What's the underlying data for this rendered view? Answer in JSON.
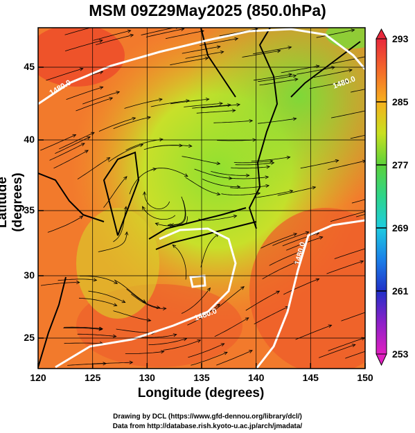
{
  "title": "MSM 09Z29May2025 (850.0hPa)",
  "axes": {
    "xlabel": "Longitude (degrees)",
    "ylabel": "Latitude  (degrees)",
    "x_ticks": [
      "120",
      "125",
      "130",
      "135",
      "140",
      "145",
      "150"
    ],
    "y_ticks": [
      "25",
      "30",
      "35",
      "40",
      "45"
    ],
    "x_range": [
      120,
      150
    ],
    "y_range": [
      22.4,
      47.6
    ]
  },
  "colorbar": {
    "labels": [
      "293",
      "285",
      "277",
      "269",
      "261",
      "253"
    ],
    "range": [
      253,
      293
    ]
  },
  "contour_labels": [
    "1480.0",
    "1480.0",
    "1480.0",
    "1480.0",
    "1480.0"
  ],
  "credits": {
    "line1": "Drawing by DCL (https://www.gfd-dennou.org/library/dcl/)",
    "line2": "Data from http://database.rish.kyoto-u.ac.jp/arch/jmadata/"
  }
}
